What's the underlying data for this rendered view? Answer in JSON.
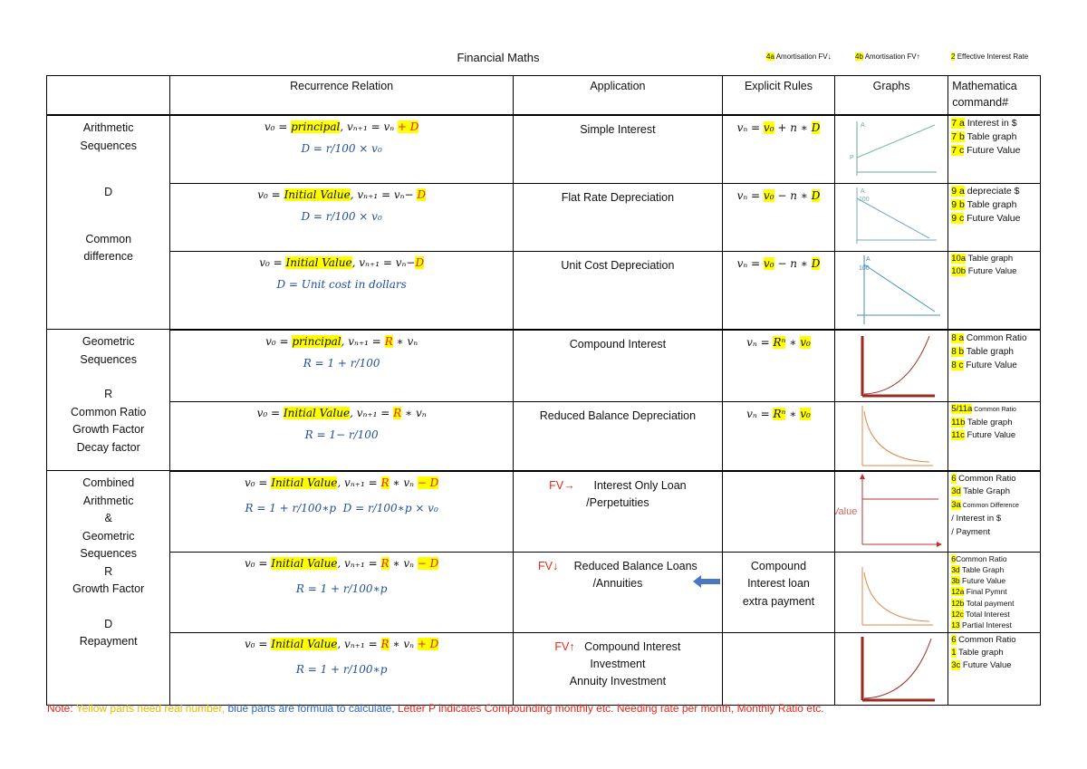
{
  "title": "Financial Maths",
  "legend": [
    {
      "code": "4a",
      "text": "Amortisation FV↓"
    },
    {
      "code": "4b",
      "text": "Amortisation FV↑"
    },
    {
      "code": "2",
      "text": "Effective Interest Rate"
    }
  ],
  "headers": {
    "blank": "",
    "recurrence": "Recurrence Relation",
    "application": "Application",
    "explicit": "Explicit Rules",
    "graphs": "Graphs",
    "mathematica": "Mathematica command#"
  },
  "groups": {
    "arithmetic": {
      "l1": "Arithmetic",
      "l2": "Sequences",
      "l3": "D",
      "l4": "Common",
      "l5": "difference"
    },
    "geometric": {
      "l1": "Geometric",
      "l2": "Sequences",
      "l3": "R",
      "l4": "Common Ratio",
      "l5": "Growth Factor",
      "l6": "Decay factor"
    },
    "combined": {
      "l1": "Combined",
      "l2": "Arithmetic",
      "l3": "&",
      "l4": "Geometric",
      "l5": "Sequences",
      "l6": "R",
      "l7": "Growth Factor",
      "l8": "D",
      "l9": "Repayment"
    }
  },
  "rows": {
    "simple": {
      "rr_v0": "v₀ = ",
      "rr_init": "principal",
      "rr_rest": ", vₙ₊₁ = vₙ ",
      "rr_op": "+ D",
      "formula": "D = r/100 × v₀",
      "app": "Simple Interest",
      "exp_a": "vₙ = ",
      "exp_b": "v₀",
      "exp_c": " + n ∗ ",
      "exp_d": "D",
      "graph_label": "A",
      "graph_tick": "P",
      "cmd": [
        [
          "7 a",
          " Interest in $"
        ],
        [
          "7 b",
          " Table graph"
        ],
        [
          "7 c",
          " Future Value"
        ]
      ]
    },
    "flat": {
      "rr_v0": "v₀ = ",
      "rr_init": "Initial Value",
      "rr_rest": ", vₙ₊₁ = vₙ− ",
      "rr_op": "D",
      "formula": "D = r/100 × v₀",
      "app": "Flat Rate Depreciation",
      "exp_a": "vₙ = ",
      "exp_b": "v₀",
      "exp_c": " − n ∗ ",
      "exp_d": "D",
      "graph_label": "A",
      "graph_tick": "100",
      "cmd": [
        [
          "9 a",
          " depreciate $"
        ],
        [
          "9 b",
          " Table graph"
        ],
        [
          "9 c",
          " Future Value"
        ]
      ]
    },
    "unit": {
      "rr_v0": "v₀ = ",
      "rr_init": "Initial Value",
      "rr_rest": ", vₙ₊₁ = vₙ−",
      "rr_op": "D",
      "formula": "D = Unit cost in dollars",
      "app": "Unit Cost Depreciation",
      "exp_a": "vₙ = ",
      "exp_b": "v₀",
      "exp_c": " − n ∗ ",
      "exp_d": "D",
      "graph_label": "A",
      "graph_tick": "100",
      "cmd": [
        [
          "10a",
          " Table graph"
        ],
        [
          "10b",
          " Future Value"
        ]
      ]
    },
    "compound": {
      "rr_v0": "v₀ = ",
      "rr_init": "principal",
      "rr_rest": ", vₙ₊₁ = ",
      "rr_op": "R",
      "rr_tail": " ∗ vₙ",
      "formula": "R = 1 + r/100",
      "app": "Compound Interest",
      "exp_a": "vₙ = ",
      "exp_b": "Rⁿ",
      "exp_c": " ∗ ",
      "exp_d": "v₀",
      "cmd": [
        [
          "8 a",
          " Common Ratio"
        ],
        [
          "8 b",
          " Table graph"
        ],
        [
          "8 c",
          " Future Value"
        ]
      ]
    },
    "reduced": {
      "rr_v0": "v₀ = ",
      "rr_init": "Initial Value",
      "rr_rest": ", vₙ₊₁ = ",
      "rr_op": "R",
      "rr_tail": " ∗ vₙ",
      "formula": "R = 1− r/100",
      "app": "Reduced Balance Depreciation",
      "exp_a": "vₙ = ",
      "exp_b": "Rⁿ",
      "exp_c": " ∗ ",
      "exp_d": "v₀",
      "cmd": [
        [
          "5/11a",
          " Common Ratio"
        ],
        [
          "11b",
          " Table graph"
        ],
        [
          "11c",
          " Future Value"
        ]
      ]
    },
    "interest_only": {
      "rr_v0": "v₀ = ",
      "rr_init": "Initial Value",
      "rr_rest": ", vₙ₊₁ = ",
      "rr_op": "R",
      "rr_tail": " ∗ vₙ ",
      "rr_end": "− D",
      "formula_a": "R = 1 + r/100∗p",
      "formula_b": "D = r/100∗p × v₀",
      "fv": "FV→",
      "app1": "Interest Only Loan",
      "app2": "/Perpetuities",
      "graph_label": "Value",
      "cmd": [
        [
          "6",
          " Common Ratio"
        ],
        [
          "3d",
          " Table Graph"
        ],
        [
          "3a",
          " Common Difference"
        ],
        [
          "",
          "/ Interest in $"
        ],
        [
          "",
          "/ Payment"
        ]
      ]
    },
    "annuities": {
      "rr_v0": "v₀ = ",
      "rr_init": "Initial Value",
      "rr_rest": ", vₙ₊₁ = ",
      "rr_op": "R",
      "rr_tail": " ∗ vₙ ",
      "rr_end": "− D",
      "formula": "R = 1 + r/100∗p",
      "fv": "FV↓",
      "app1": "Reduced Balance Loans",
      "app2": "/Annuities",
      "exp1": "Compound",
      "exp2": "Interest loan",
      "exp3": "extra payment",
      "cmd": [
        [
          "6",
          "Common Ratio"
        ],
        [
          "3d",
          " Table Graph"
        ],
        [
          "3b",
          " Future Value"
        ],
        [
          "12a",
          " Final Pymnt"
        ],
        [
          "12b",
          " Total payment"
        ],
        [
          "12c",
          " Total Interest"
        ],
        [
          "13",
          " Partial Interest"
        ]
      ]
    },
    "investment": {
      "rr_v0": "v₀ = ",
      "rr_init": "Initial Value",
      "rr_rest": ", vₙ₊₁ = ",
      "rr_op": "R",
      "rr_tail": " ∗ vₙ ",
      "rr_end": "+ D",
      "formula": "R = 1 + r/100∗p",
      "fv": "FV↑",
      "app1": "Compound Interest",
      "app2": "Investment",
      "app3": "Annuity Investment",
      "cmd": [
        [
          "6",
          " Common Ratio"
        ],
        [
          "1",
          " Table graph"
        ],
        [
          "3c",
          " Future Value"
        ]
      ]
    }
  },
  "note": {
    "label": "Note: ",
    "yellow": "Yellow parts need real number, ",
    "blue": "blue parts are formula to calculate, ",
    "red": "Letter P indicates Compounding monthly etc. Needing rate per month, Monthly Ratio etc."
  },
  "colors": {
    "yellow": "#ffff00",
    "red": "#e8271b",
    "blue": "#1f4e9c",
    "graph_red": "#9b2b24",
    "graph_orange": "#d98a4a",
    "graph_blue": "#4a8fc0"
  }
}
